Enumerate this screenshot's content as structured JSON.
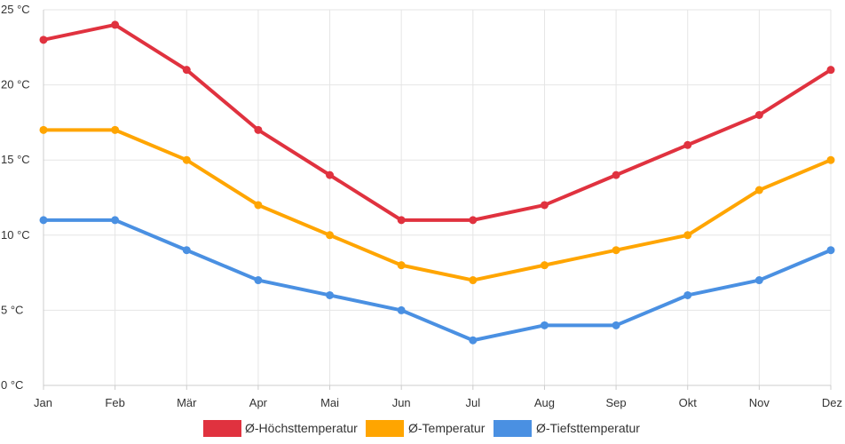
{
  "chart_data": {
    "type": "line",
    "title": "",
    "xlabel": "",
    "ylabel": "",
    "ylim": [
      0,
      25
    ],
    "y_ticks": [
      0,
      5,
      10,
      15,
      20,
      25
    ],
    "y_tick_labels": [
      "0 °C",
      "5 °C",
      "10 °C",
      "15 °C",
      "20 °C",
      "25 °C"
    ],
    "grid": true,
    "legend_position": "bottom-center",
    "categories": [
      "Jan",
      "Feb",
      "Mär",
      "Apr",
      "Mai",
      "Jun",
      "Jul",
      "Aug",
      "Sep",
      "Okt",
      "Nov",
      "Dez"
    ],
    "series": [
      {
        "name": "Ø-Höchsttemperatur",
        "color": "#e0323f",
        "values": [
          23,
          24,
          21,
          17,
          14,
          11,
          11,
          12,
          14,
          16,
          18,
          21
        ]
      },
      {
        "name": "Ø-Temperatur",
        "color": "#ffa500",
        "values": [
          17,
          17,
          15,
          12,
          10,
          8,
          7,
          8,
          9,
          10,
          13,
          15
        ]
      },
      {
        "name": "Ø-Tiefsttemperatur",
        "color": "#4a90e2",
        "values": [
          11,
          11,
          9,
          7,
          6,
          5,
          3,
          4,
          4,
          6,
          7,
          9
        ]
      }
    ]
  }
}
